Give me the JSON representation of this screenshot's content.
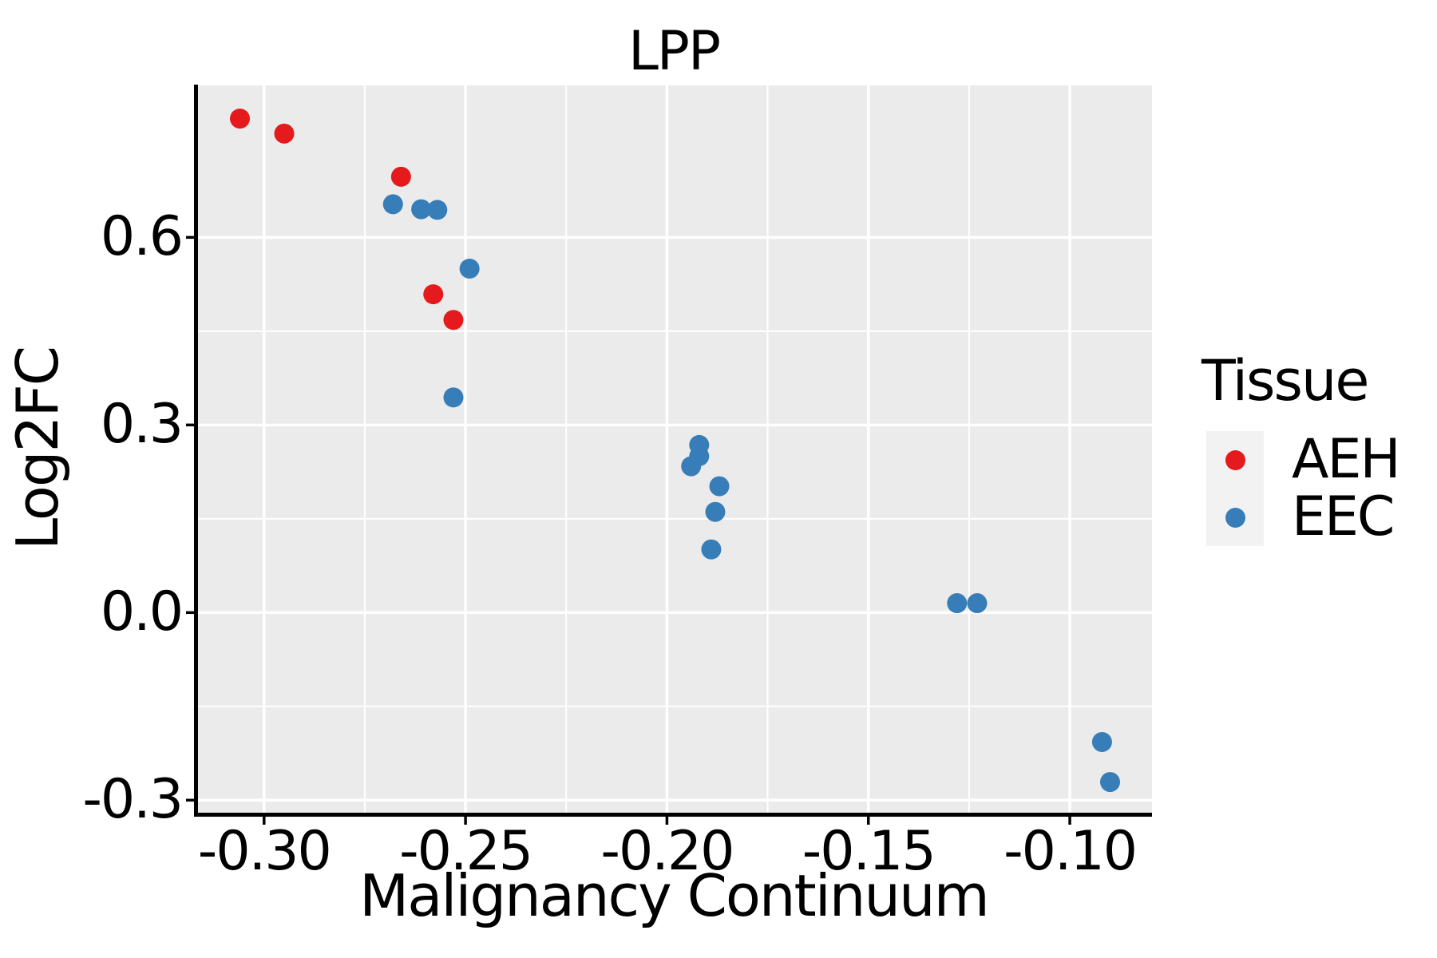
{
  "title": "LPP",
  "axes": {
    "x": {
      "label": "Malignancy Continuum"
    },
    "y": {
      "label": "Log2FC"
    }
  },
  "legend": {
    "title": "Tissue",
    "items": [
      {
        "label": "AEH",
        "color": "#E41A1C"
      },
      {
        "label": "EEC",
        "color": "#377EB8"
      }
    ]
  },
  "colors": {
    "panel_background": "#EBEBEB",
    "grid": "#FFFFFF",
    "axis_line": "#000000",
    "tick_text": "#000000",
    "legend_key_background": "#F2F2F2",
    "aeh_red": "#E41A1C",
    "eec_blue": "#377EB8"
  },
  "chart_data": {
    "type": "scatter",
    "title": "LPP",
    "xlabel": "Malignancy Continuum",
    "ylabel": "Log2FC",
    "legend_title": "Tissue",
    "legend_position": "right",
    "grid": "on",
    "panel_background": "#EBEBEB",
    "xlim": [
      -0.3168,
      -0.0796
    ],
    "ylim": [
      -0.3226,
      0.843
    ],
    "x_ticks": [
      -0.3,
      -0.25,
      -0.2,
      -0.15,
      -0.1
    ],
    "x_tick_labels": [
      "-0.30",
      "-0.25",
      "-0.20",
      "-0.15",
      "-0.10"
    ],
    "y_ticks": [
      0.6,
      0.3,
      0.0,
      -0.3
    ],
    "y_tick_labels": [
      "0.6",
      "0.3",
      "0.0",
      "-0.3"
    ],
    "series": [
      {
        "name": "AEH",
        "color": "#E41A1C",
        "points": [
          [
            -0.306,
            0.79
          ],
          [
            -0.295,
            0.766
          ],
          [
            -0.266,
            0.697
          ],
          [
            -0.258,
            0.509
          ],
          [
            -0.253,
            0.468
          ]
        ]
      },
      {
        "name": "EEC",
        "color": "#377EB8",
        "points": [
          [
            -0.268,
            0.653
          ],
          [
            -0.261,
            0.645
          ],
          [
            -0.257,
            0.644
          ],
          [
            -0.249,
            0.55
          ],
          [
            -0.253,
            0.344
          ],
          [
            -0.192,
            0.268
          ],
          [
            -0.192,
            0.25
          ],
          [
            -0.194,
            0.234
          ],
          [
            -0.187,
            0.202
          ],
          [
            -0.188,
            0.161
          ],
          [
            -0.189,
            0.101
          ],
          [
            -0.128,
            0.015
          ],
          [
            -0.123,
            0.015
          ],
          [
            -0.092,
            -0.207
          ],
          [
            -0.09,
            -0.271
          ]
        ]
      }
    ]
  }
}
